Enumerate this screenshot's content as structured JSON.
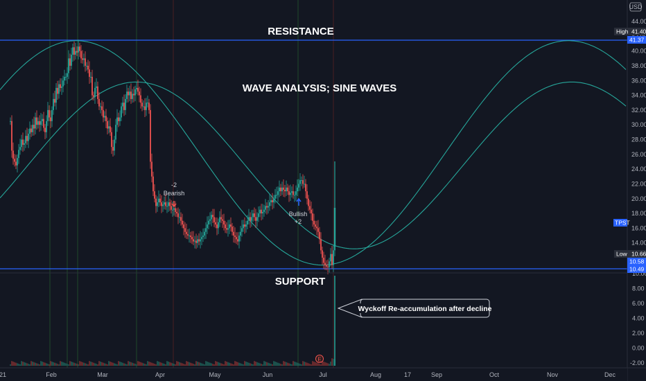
{
  "chart_data": {
    "type": "candlestick",
    "symbol": "TPST",
    "currency": "USD",
    "x_ticks": [
      "21",
      "Feb",
      "Mar",
      "Apr",
      "May",
      "Jun",
      "Jul",
      "Aug",
      "17",
      "Sep",
      "Oct",
      "Nov",
      "Dec"
    ],
    "y_ticks": [
      "44.00",
      "42.00",
      "40.00",
      "38.00",
      "36.00",
      "34.00",
      "32.00",
      "30.00",
      "28.00",
      "26.00",
      "24.00",
      "22.00",
      "20.00",
      "18.00",
      "16.00",
      "14.00",
      "12.00"
    ],
    "lower_ticks": [
      "10.00",
      "8.00",
      "6.00",
      "4.00",
      "2.00",
      "0.00",
      "-2.00"
    ],
    "price_tags": {
      "high_label": "High",
      "high_value": "41.40",
      "resistance_value": "41.37",
      "symbol_tag": "TPST",
      "low_label": "Low",
      "low_value": "10.66",
      "support_value": "10.58",
      "last_value": "10.49"
    },
    "levels": {
      "resistance": 41.37,
      "support": 10.58
    },
    "annotations": {
      "resistance": "RESISTANCE",
      "support": "SUPPORT",
      "waves": "WAVE ANALYSIS; SINE WAVES",
      "wyckoff": "Wyckoff Re-accumulation after decline",
      "bearish_num": "-2",
      "bearish_word": "Bearish",
      "bullish_word": "Bullish",
      "bullish_num": "+2",
      "earnings": "E"
    },
    "candles": [
      [
        15,
        30.5
      ],
      [
        17,
        26.5
      ],
      [
        19,
        25.4
      ],
      [
        21,
        25
      ],
      [
        23,
        24.5
      ],
      [
        25,
        25.5
      ],
      [
        27,
        26.6
      ],
      [
        29,
        27
      ],
      [
        31,
        28
      ],
      [
        33,
        27.3
      ],
      [
        35,
        27.5
      ],
      [
        37,
        28.5
      ],
      [
        39,
        27.8
      ],
      [
        41,
        28.8
      ],
      [
        43,
        29.5
      ],
      [
        45,
        29
      ],
      [
        47,
        30
      ],
      [
        49,
        29.5
      ],
      [
        51,
        31
      ],
      [
        53,
        30
      ],
      [
        55,
        30.5
      ],
      [
        57,
        30
      ],
      [
        59,
        30.5
      ],
      [
        61,
        30.8
      ],
      [
        63,
        29.6
      ],
      [
        65,
        29
      ],
      [
        67,
        30.5
      ],
      [
        69,
        32
      ],
      [
        71,
        31
      ],
      [
        73,
        30.5
      ],
      [
        75,
        32
      ],
      [
        77,
        33.5
      ],
      [
        79,
        33
      ],
      [
        81,
        35
      ],
      [
        83,
        34.2
      ],
      [
        85,
        35.5
      ],
      [
        87,
        35
      ],
      [
        89,
        35.2
      ],
      [
        91,
        36
      ],
      [
        93,
        36.5
      ],
      [
        95,
        36.5
      ],
      [
        97,
        37
      ],
      [
        99,
        39
      ],
      [
        101,
        38
      ],
      [
        103,
        39.5
      ],
      [
        105,
        40.5
      ],
      [
        107,
        39.5
      ],
      [
        109,
        40
      ],
      [
        111,
        39.8
      ],
      [
        113,
        40.6
      ],
      [
        115,
        40
      ],
      [
        117,
        39
      ],
      [
        119,
        38.8
      ],
      [
        121,
        39
      ],
      [
        123,
        38
      ],
      [
        125,
        38
      ],
      [
        127,
        37.5
      ],
      [
        129,
        36.5
      ],
      [
        131,
        36.5
      ],
      [
        133,
        34
      ],
      [
        135,
        33.8
      ],
      [
        137,
        35
      ],
      [
        139,
        35.2
      ],
      [
        141,
        33.5
      ],
      [
        143,
        32.5
      ],
      [
        145,
        32.5
      ],
      [
        147,
        32
      ],
      [
        149,
        31
      ],
      [
        151,
        31.2
      ],
      [
        153,
        30.5
      ],
      [
        155,
        29.5
      ],
      [
        157,
        29.8
      ],
      [
        159,
        29
      ],
      [
        161,
        27
      ],
      [
        163,
        26.5
      ],
      [
        165,
        28
      ],
      [
        167,
        30
      ],
      [
        169,
        31
      ],
      [
        171,
        30.5
      ],
      [
        173,
        31
      ],
      [
        175,
        32.5
      ],
      [
        177,
        33
      ],
      [
        179,
        32
      ],
      [
        181,
        33.5
      ],
      [
        183,
        34.5
      ],
      [
        185,
        34
      ],
      [
        187,
        34.5
      ],
      [
        189,
        33.5
      ],
      [
        191,
        34.2
      ],
      [
        193,
        34
      ],
      [
        195,
        34.8
      ],
      [
        197,
        35
      ],
      [
        199,
        34.5
      ],
      [
        201,
        34
      ],
      [
        203,
        33
      ],
      [
        205,
        32.5
      ],
      [
        207,
        32.5
      ],
      [
        209,
        32
      ],
      [
        211,
        33
      ],
      [
        213,
        33
      ],
      [
        215,
        32
      ],
      [
        217,
        25
      ],
      [
        219,
        23
      ],
      [
        221,
        21
      ],
      [
        223,
        20
      ],
      [
        225,
        19
      ],
      [
        227,
        19.5
      ],
      [
        229,
        20
      ],
      [
        231,
        19.5
      ],
      [
        233,
        19
      ],
      [
        235,
        19.2
      ],
      [
        237,
        19.5
      ],
      [
        239,
        19
      ],
      [
        241,
        19
      ],
      [
        243,
        19.5
      ],
      [
        245,
        19
      ],
      [
        247,
        18.5
      ],
      [
        249,
        18.5
      ],
      [
        251,
        18.7
      ],
      [
        253,
        18.2
      ],
      [
        255,
        18
      ],
      [
        257,
        17.5
      ],
      [
        259,
        17.5
      ],
      [
        261,
        17
      ],
      [
        263,
        16.5
      ],
      [
        265,
        16
      ],
      [
        267,
        15.5
      ],
      [
        269,
        15.2
      ],
      [
        271,
        15
      ],
      [
        273,
        15
      ],
      [
        275,
        14.8
      ],
      [
        277,
        14.5
      ],
      [
        279,
        14.2
      ],
      [
        281,
        14.3
      ],
      [
        283,
        14
      ],
      [
        285,
        14.5
      ],
      [
        287,
        14.2
      ],
      [
        289,
        14.5
      ],
      [
        291,
        14.8
      ],
      [
        293,
        15
      ],
      [
        295,
        15.5
      ],
      [
        297,
        16
      ],
      [
        299,
        16.5
      ],
      [
        301,
        17
      ],
      [
        303,
        17.2
      ],
      [
        305,
        17.8
      ],
      [
        307,
        17.5
      ],
      [
        309,
        16.8
      ],
      [
        311,
        16.5
      ],
      [
        313,
        16
      ],
      [
        315,
        16.8
      ],
      [
        317,
        17.5
      ],
      [
        319,
        17.2
      ],
      [
        321,
        17
      ],
      [
        323,
        16.5
      ],
      [
        325,
        16
      ],
      [
        327,
        15.8
      ],
      [
        329,
        16
      ],
      [
        331,
        16.5
      ],
      [
        333,
        16.2
      ],
      [
        335,
        15.5
      ],
      [
        337,
        15
      ],
      [
        339,
        14.8
      ],
      [
        341,
        14.5
      ],
      [
        343,
        14.2
      ],
      [
        345,
        15
      ],
      [
        347,
        15.5
      ],
      [
        349,
        16
      ],
      [
        351,
        16.5
      ],
      [
        353,
        16.2
      ],
      [
        355,
        16.5
      ],
      [
        357,
        17
      ],
      [
        359,
        17.5
      ],
      [
        361,
        17
      ],
      [
        363,
        17.5
      ],
      [
        365,
        18
      ],
      [
        367,
        17.5
      ],
      [
        369,
        17
      ],
      [
        371,
        17.5
      ],
      [
        373,
        18
      ],
      [
        375,
        18.5
      ],
      [
        377,
        18
      ],
      [
        379,
        18.2
      ],
      [
        381,
        18.5
      ],
      [
        383,
        19
      ],
      [
        385,
        18.8
      ],
      [
        387,
        19
      ],
      [
        389,
        19.5
      ],
      [
        391,
        19.8
      ],
      [
        393,
        19.5
      ],
      [
        395,
        20
      ],
      [
        397,
        20.5
      ],
      [
        399,
        20.5
      ],
      [
        401,
        21
      ],
      [
        403,
        21.5
      ],
      [
        405,
        21
      ],
      [
        407,
        21.5
      ],
      [
        409,
        21.2
      ],
      [
        411,
        21
      ],
      [
        413,
        21.5
      ],
      [
        415,
        21
      ],
      [
        417,
        20.5
      ],
      [
        419,
        20.8
      ],
      [
        421,
        21
      ],
      [
        423,
        20.5
      ],
      [
        425,
        20.5
      ],
      [
        427,
        21
      ],
      [
        429,
        21.5
      ],
      [
        431,
        22
      ],
      [
        433,
        22.5
      ],
      [
        435,
        22.5
      ],
      [
        437,
        22
      ],
      [
        439,
        22
      ],
      [
        441,
        21
      ],
      [
        443,
        20
      ],
      [
        445,
        19
      ],
      [
        447,
        18.5
      ],
      [
        449,
        18
      ],
      [
        451,
        17
      ],
      [
        453,
        16.5
      ],
      [
        455,
        16.2
      ],
      [
        457,
        16
      ],
      [
        459,
        15.5
      ],
      [
        461,
        14.5
      ],
      [
        463,
        13
      ],
      [
        465,
        12
      ],
      [
        467,
        11.3
      ],
      [
        469,
        11
      ],
      [
        471,
        10.8
      ],
      [
        473,
        10.7
      ],
      [
        475,
        11.5
      ],
      [
        477,
        12.5
      ],
      [
        479,
        11
      ],
      [
        481,
        13
      ],
      [
        483,
        18.5
      ]
    ],
    "sine_waves": [
      {
        "peak_date": "Feb",
        "low": 11.0,
        "high": 41.4
      },
      {
        "peak_date": "Mar",
        "low": 13.2,
        "high": 35.8
      }
    ],
    "grid": false
  }
}
